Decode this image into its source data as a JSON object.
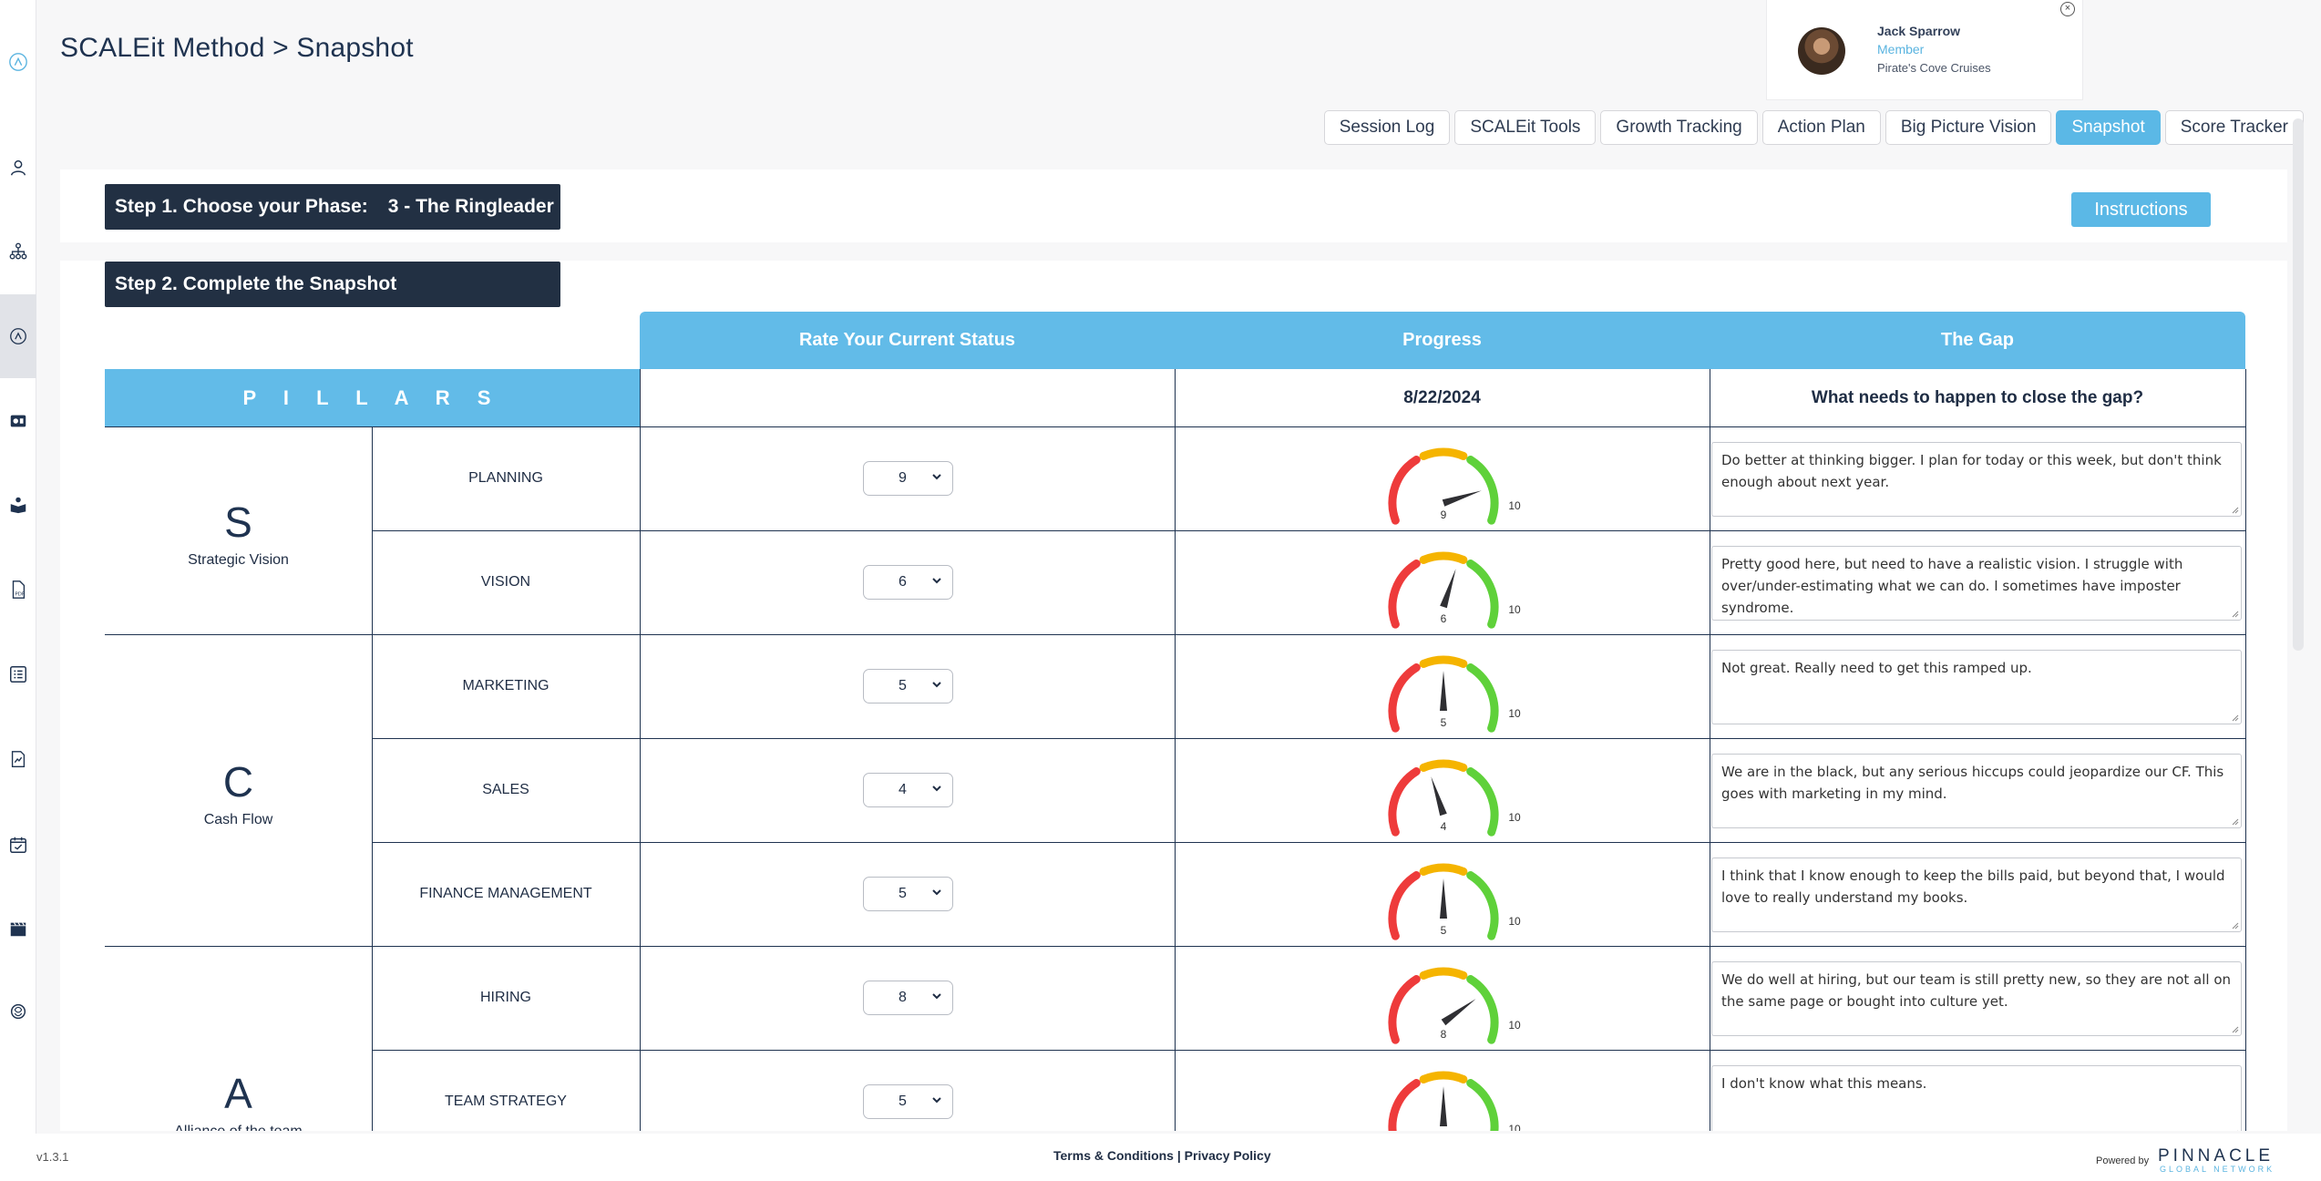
{
  "page": {
    "title": "SCALEit Method > Snapshot"
  },
  "user": {
    "name": "Jack Sparrow",
    "role": "Member",
    "company": "Pirate's Cove Cruises"
  },
  "tabs": [
    {
      "label": "Session Log"
    },
    {
      "label": "SCALEit Tools"
    },
    {
      "label": "Growth Tracking"
    },
    {
      "label": "Action Plan"
    },
    {
      "label": "Big Picture Vision"
    },
    {
      "label": "Snapshot",
      "active": true
    },
    {
      "label": "Score Tracker"
    }
  ],
  "step1": {
    "label": "Step 1. Choose your Phase:",
    "phase": "3 - The Ringleader",
    "instructions_label": "Instructions"
  },
  "step2": {
    "label": "Step 2. Complete the Snapshot"
  },
  "table": {
    "col_rate": "Rate Your Current Status",
    "col_progress": "Progress",
    "col_gap": "The Gap",
    "pillars_label": "P I L L A R S",
    "progress_date": "8/22/2024",
    "gap_question": "What needs to happen to close the gap?",
    "gauge_max": "10",
    "pillars": [
      {
        "letter": "S",
        "name": "Strategic Vision"
      },
      {
        "letter": "C",
        "name": "Cash Flow"
      },
      {
        "letter": "A",
        "name": "Alliance of the team"
      }
    ],
    "rows": [
      {
        "subject": "PLANNING",
        "rating": 9,
        "gauge_label": "9",
        "gap": "Do better at thinking bigger.  I plan for today or this week, but don't think enough about next year."
      },
      {
        "subject": "VISION",
        "rating": 6,
        "gauge_label": "6",
        "gap": "Pretty good here, but need to have a realistic vision.  I struggle with over/under-estimating what we can do.  I sometimes have imposter syndrome."
      },
      {
        "subject": "MARKETING",
        "rating": 5,
        "gauge_label": "5",
        "gap": "Not great.  Really need to get this ramped up."
      },
      {
        "subject": "SALES",
        "rating": 4,
        "gauge_label": "4",
        "gap": "We are in the black, but any serious hiccups could jeopardize our CF.  This goes with marketing in my mind."
      },
      {
        "subject": "FINANCE MANAGEMENT",
        "rating": 5,
        "gauge_label": "5",
        "gap": "I think that I know enough to keep the bills paid, but beyond that, I would love to really understand my books."
      },
      {
        "subject": "HIRING",
        "rating": 8,
        "gauge_label": "8",
        "gap": "We do well at hiring, but our team is still pretty new, so they are not all on the same page or bought into culture yet."
      },
      {
        "subject": "TEAM STRATEGY",
        "rating": 5,
        "gauge_label": "5",
        "gap": "I don't know what this means."
      }
    ]
  },
  "footer": {
    "version": "v1.3.1",
    "terms": "Terms & Conditions",
    "separator": " | ",
    "privacy": "Privacy Policy",
    "powered_by": "Powered by",
    "brand": "PINNACLE",
    "brand_sub": "GLOBAL NETWORK"
  },
  "colors": {
    "accent": "#5bb8e6",
    "dark": "#223043",
    "gauge_red": "#ee3b3b",
    "gauge_yellow": "#f5b400",
    "gauge_green": "#5fd13a"
  }
}
